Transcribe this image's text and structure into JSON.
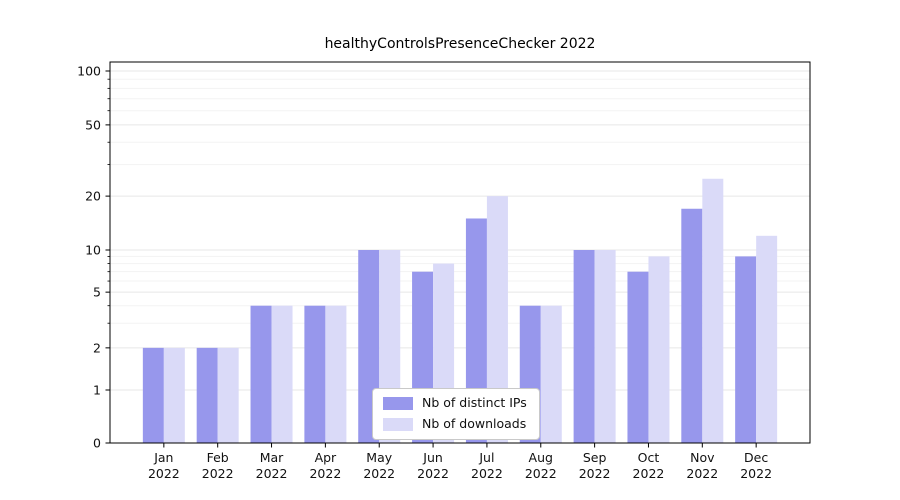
{
  "title": "healthyControlsPresenceChecker 2022",
  "chart_data": {
    "type": "bar",
    "title": "healthyControlsPresenceChecker 2022",
    "xlabel": "",
    "ylabel": "",
    "yscale": "symlog",
    "ylim": [
      0,
      115
    ],
    "grid": true,
    "legend_position": "lower center",
    "yticks": [
      0,
      1,
      2,
      5,
      10,
      20,
      50,
      100
    ],
    "minor_yticks": [
      3,
      4,
      6,
      7,
      8,
      9,
      30,
      40,
      60,
      70,
      80,
      90
    ],
    "categories": [
      "Jan 2022",
      "Feb 2022",
      "Mar 2022",
      "Apr 2022",
      "May 2022",
      "Jun 2022",
      "Jul 2022",
      "Aug 2022",
      "Sep 2022",
      "Oct 2022",
      "Nov 2022",
      "Dec 2022"
    ],
    "series": [
      {
        "name": "Nb of distinct IPs",
        "color": "#9797ec",
        "values": [
          2,
          2,
          4,
          4,
          10,
          7,
          15,
          4,
          10,
          7,
          17,
          9
        ]
      },
      {
        "name": "Nb of downloads",
        "color": "#dadaf8",
        "values": [
          2,
          2,
          4,
          4,
          10,
          8,
          20,
          4,
          10,
          9,
          25,
          12
        ]
      }
    ]
  }
}
